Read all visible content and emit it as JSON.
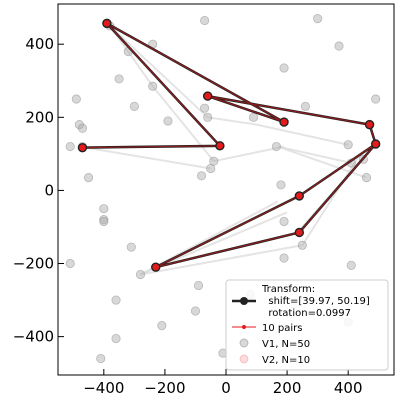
{
  "chart_data": {
    "type": "scatter",
    "xlim": [
      -550,
      550
    ],
    "ylim": [
      -505,
      510
    ],
    "x_ticks": [
      -400,
      -200,
      0,
      200,
      400
    ],
    "y_ticks": [
      -400,
      -200,
      0,
      200,
      400
    ],
    "x_tick_labels": [
      "−400",
      "−200",
      "0",
      "200",
      "400"
    ],
    "y_tick_labels": [
      "−400",
      "−200",
      "0",
      "200",
      "400"
    ],
    "legend": {
      "placement": "lower-right",
      "entries": [
        {
          "id": "transform",
          "label_lines": [
            "Transform:",
            "  shift=[39.97, 50.19]",
            "  rotation=0.0997"
          ]
        },
        {
          "id": "pairs",
          "label_lines": [
            "10 pairs"
          ]
        },
        {
          "id": "v1",
          "label_lines": [
            "V1, N=50"
          ]
        },
        {
          "id": "v2",
          "label_lines": [
            "V2, N=10"
          ]
        }
      ]
    },
    "colors": {
      "v1_points": "#a8a8a8",
      "v1_links": "#d8d8d8",
      "pairs_line": "#e41a1c",
      "transform_line": "#222222",
      "v2_marker_face": "#e41a1c",
      "v2_marker_edge": "#222222"
    },
    "v1_points": [
      [
        -380,
        450
      ],
      [
        -320,
        380
      ],
      [
        -350,
        305
      ],
      [
        -300,
        230
      ],
      [
        -190,
        190
      ],
      [
        -240,
        285
      ],
      [
        -240,
        400
      ],
      [
        -70,
        465
      ],
      [
        -70,
        225
      ],
      [
        -60,
        200
      ],
      [
        -50,
        60
      ],
      [
        -80,
        40
      ],
      [
        -40,
        80
      ],
      [
        300,
        470
      ],
      [
        370,
        395
      ],
      [
        490,
        250
      ],
      [
        190,
        335
      ],
      [
        260,
        230
      ],
      [
        90,
        200
      ],
      [
        165,
        120
      ],
      [
        400,
        125
      ],
      [
        410,
        75
      ],
      [
        450,
        85
      ],
      [
        460,
        35
      ],
      [
        180,
        15
      ],
      [
        -490,
        250
      ],
      [
        -480,
        180
      ],
      [
        -470,
        170
      ],
      [
        -510,
        120
      ],
      [
        -470,
        120
      ],
      [
        -450,
        35
      ],
      [
        -400,
        -50
      ],
      [
        -400,
        -80
      ],
      [
        -400,
        -85
      ],
      [
        -310,
        -155
      ],
      [
        -280,
        -230
      ],
      [
        -510,
        -200
      ],
      [
        -360,
        -300
      ],
      [
        -360,
        -405
      ],
      [
        -410,
        -460
      ],
      [
        -210,
        -370
      ],
      [
        -90,
        -260
      ],
      [
        -100,
        -330
      ],
      [
        -10,
        -445
      ],
      [
        190,
        -85
      ],
      [
        250,
        -150
      ],
      [
        190,
        -185
      ],
      [
        410,
        -205
      ],
      [
        80,
        -285
      ],
      [
        400,
        -360
      ]
    ],
    "v1_links": [
      [
        [
          -380,
          450
        ],
        [
          -60,
          200
        ]
      ],
      [
        [
          -380,
          450
        ],
        [
          -240,
          285
        ]
      ],
      [
        [
          -240,
          285
        ],
        [
          -40,
          80
        ]
      ],
      [
        [
          -480,
          120
        ],
        [
          -50,
          60
        ]
      ],
      [
        [
          -40,
          80
        ],
        [
          190,
          120
        ]
      ],
      [
        [
          -60,
          200
        ],
        [
          100,
          180
        ]
      ],
      [
        [
          100,
          180
        ],
        [
          400,
          125
        ]
      ],
      [
        [
          170,
          120
        ],
        [
          410,
          75
        ]
      ],
      [
        [
          170,
          120
        ],
        [
          460,
          35
        ]
      ],
      [
        [
          240,
          -110
        ],
        [
          440,
          80
        ]
      ],
      [
        [
          240,
          -110
        ],
        [
          420,
          60
        ]
      ],
      [
        [
          250,
          -150
        ],
        [
          440,
          100
        ]
      ],
      [
        [
          -280,
          -230
        ],
        [
          170,
          -30
        ]
      ],
      [
        [
          -280,
          -230
        ],
        [
          200,
          -60
        ]
      ],
      [
        [
          -280,
          -230
        ],
        [
          250,
          -150
        ]
      ]
    ],
    "v2_points": [
      [
        -390,
        457
      ],
      [
        -20,
        122
      ],
      [
        -470,
        117
      ],
      [
        -60,
        258
      ],
      [
        190,
        187
      ],
      [
        470,
        180
      ],
      [
        490,
        127
      ],
      [
        240,
        -15
      ],
      [
        -230,
        -210
      ],
      [
        240,
        -115
      ]
    ],
    "transform_path": [
      [
        -470,
        117
      ],
      [
        -20,
        122
      ],
      [
        -390,
        457
      ],
      [
        190,
        187
      ],
      [
        -60,
        258
      ],
      [
        470,
        180
      ],
      [
        490,
        127
      ],
      [
        240,
        -115
      ],
      [
        -230,
        -210
      ],
      [
        240,
        -15
      ],
      [
        490,
        127
      ]
    ]
  }
}
